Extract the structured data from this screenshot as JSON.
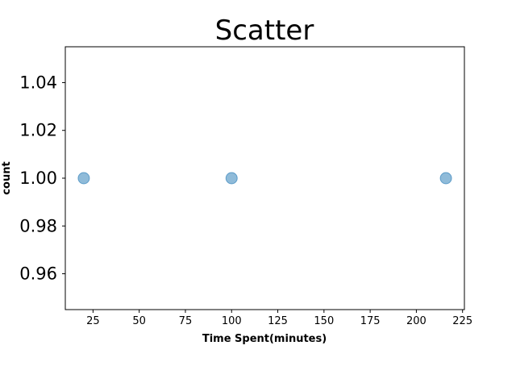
{
  "chart_data": {
    "type": "scatter",
    "title": "Scatter",
    "xlabel": "Time Spent(minutes)",
    "ylabel": "count",
    "xlim": [
      10,
      226
    ],
    "ylim": [
      0.945,
      1.055
    ],
    "xticks": [
      25,
      50,
      75,
      100,
      125,
      150,
      175,
      200,
      225
    ],
    "yticks": [
      0.96,
      0.98,
      1.0,
      1.02,
      1.04
    ],
    "ytick_labels": [
      "0.96",
      "0.98",
      "1.00",
      "1.02",
      "1.04"
    ],
    "grid": false,
    "series": [
      {
        "x": [
          20,
          100,
          216
        ],
        "y": [
          1.0,
          1.0,
          1.0
        ],
        "color": "#1f77b4",
        "alpha": 0.5
      }
    ]
  }
}
